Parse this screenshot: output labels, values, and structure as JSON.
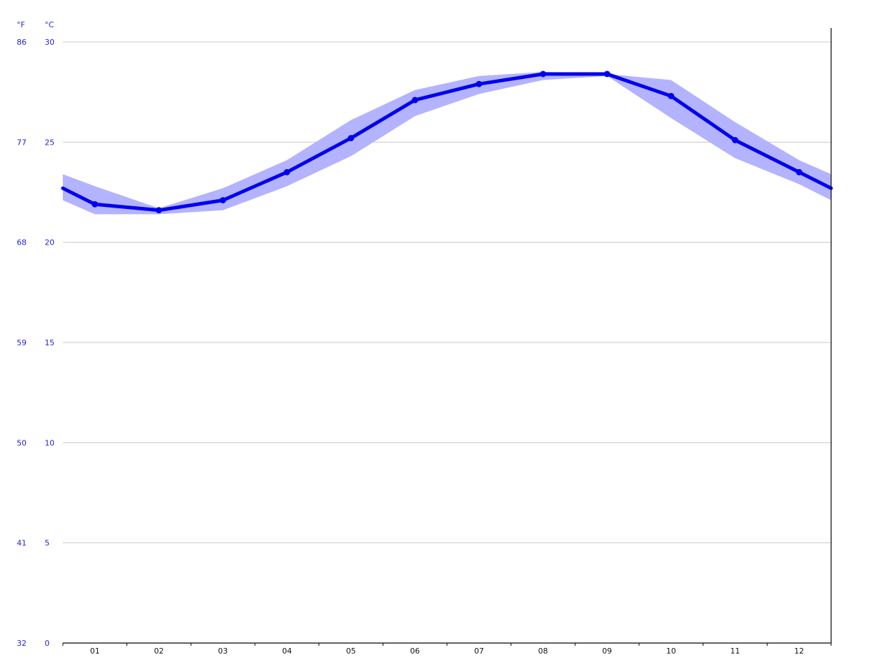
{
  "chart_data": {
    "type": "line",
    "categories": [
      "01",
      "02",
      "03",
      "04",
      "05",
      "06",
      "07",
      "08",
      "09",
      "10",
      "11",
      "12"
    ],
    "series": [
      {
        "values": [
          21.9,
          21.6,
          22.1,
          23.5,
          25.2,
          27.1,
          27.9,
          28.4,
          28.4,
          27.3,
          25.1,
          23.5
        ]
      }
    ],
    "band": {
      "upper": [
        22.8,
        21.7,
        22.7,
        24.1,
        26.1,
        27.6,
        28.3,
        28.5,
        28.4,
        28.1,
        26.0,
        24.1
      ],
      "lower": [
        21.4,
        21.4,
        21.6,
        22.8,
        24.3,
        26.3,
        27.4,
        28.1,
        28.3,
        26.2,
        24.2,
        22.9
      ]
    },
    "edge": {
      "line": [
        22.7,
        22.7
      ],
      "upper": [
        23.4,
        23.4
      ],
      "lower": [
        22.1,
        22.1
      ]
    },
    "y_celsius_ticks": [
      0,
      5,
      10,
      15,
      20,
      25,
      30
    ],
    "y_fahrenheit_ticks": [
      32,
      41,
      50,
      59,
      68,
      77,
      86
    ],
    "unit_celsius": "°C",
    "unit_fahrenheit": "°F",
    "ylim": [
      0,
      30
    ],
    "grid": true,
    "colors": {
      "line": "#0000ee",
      "band": "#b3b3ff",
      "axis_labels": "#1f1fd6"
    }
  }
}
